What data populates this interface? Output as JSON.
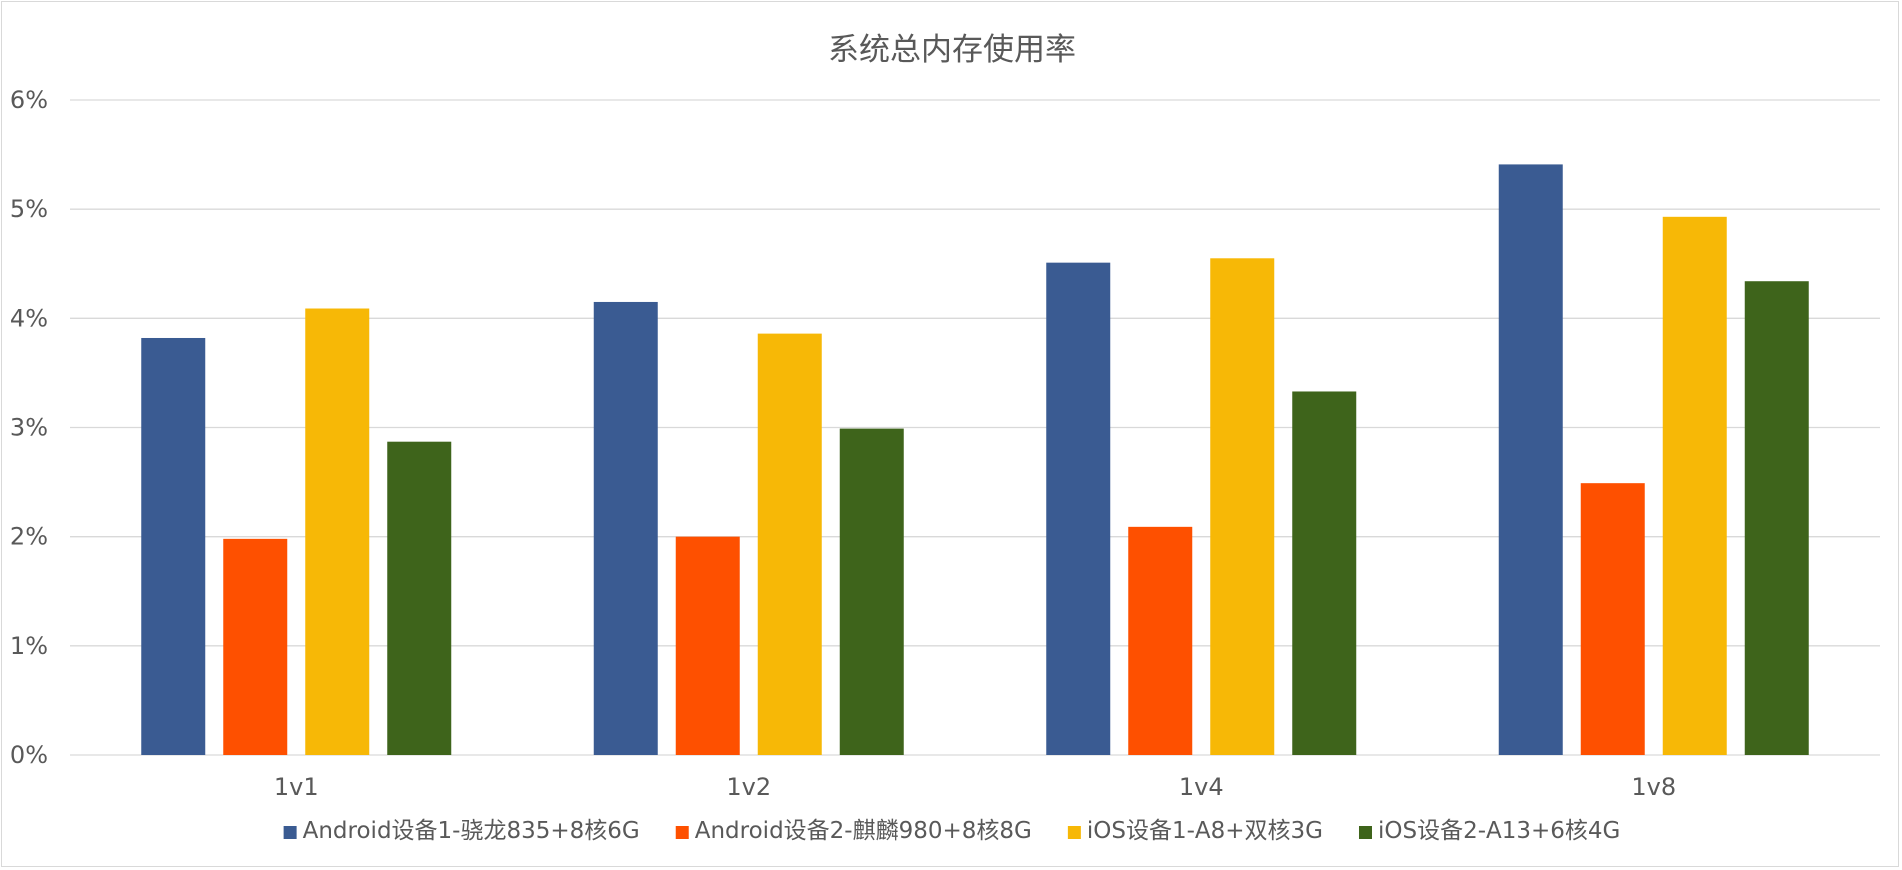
{
  "chart_data": {
    "type": "bar",
    "title": "系统总内存使用率",
    "xlabel": "",
    "ylabel": "",
    "categories": [
      "1v1",
      "1v2",
      "1v4",
      "1v8"
    ],
    "series": [
      {
        "name": "Android设备1-骁龙835+8核6G",
        "color": "#3a5b92",
        "values": [
          3.82,
          4.15,
          4.51,
          5.41
        ]
      },
      {
        "name": "Android设备2-麒麟980+8核8G",
        "color": "#fe5000",
        "values": [
          1.98,
          2.0,
          2.09,
          2.49
        ]
      },
      {
        "name": "iOS设备1-A8+双核3G",
        "color": "#f7b806",
        "values": [
          4.09,
          3.86,
          4.55,
          4.93
        ]
      },
      {
        "name": "iOS设备2-A13+6核4G",
        "color": "#3e641b",
        "values": [
          2.87,
          2.99,
          3.33,
          4.34
        ]
      }
    ],
    "ylim": [
      0,
      6
    ],
    "yticks": [
      "0%",
      "1%",
      "2%",
      "3%",
      "4%",
      "5%",
      "6%"
    ],
    "grid": true,
    "legend_position": "bottom",
    "colors": {
      "gridline": "#d9d9d9",
      "text": "#595959",
      "border": "#d9d9d9"
    }
  }
}
